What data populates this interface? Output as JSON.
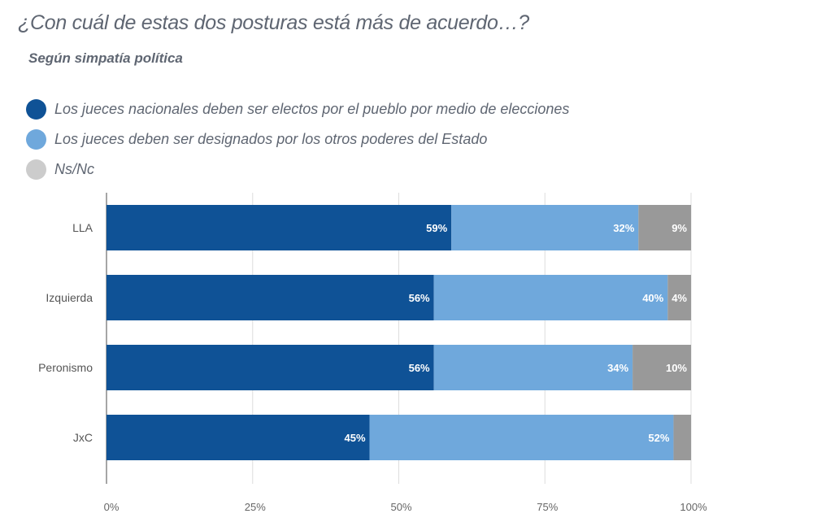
{
  "chart_data": {
    "type": "bar",
    "orientation": "horizontal",
    "stacked": "percent",
    "title": "¿Con cuál de estas dos posturas está más de acuerdo…?",
    "subtitle": "Según simpatía política",
    "categories": [
      "LLA",
      "Izquierda",
      "Peronismo",
      "JxC"
    ],
    "series": [
      {
        "name": "Los jueces nacionales deben ser electos por el pueblo por medio de elecciones",
        "color": "#0f5296",
        "values": [
          59,
          56,
          56,
          45
        ]
      },
      {
        "name": "Los jueces deben ser designados por los otros poderes del Estado",
        "color": "#6fa8dc",
        "values": [
          32,
          40,
          34,
          52
        ]
      },
      {
        "name": "Ns/Nc",
        "color": "#999999",
        "values": [
          9,
          4,
          10,
          3
        ]
      }
    ],
    "data_labels": [
      [
        "59%",
        "32%",
        "9%"
      ],
      [
        "56%",
        "40%",
        "4%"
      ],
      [
        "56%",
        "34%",
        "10%"
      ],
      [
        "45%",
        "52%",
        ""
      ]
    ],
    "xticks": [
      "0%",
      "25%",
      "50%",
      "75%",
      "100%"
    ],
    "xlim": [
      0,
      100
    ],
    "grid": true,
    "legend_position": "top-left",
    "legend_dot_colors": [
      "#0f5296",
      "#6fa8dc",
      "#cccccc"
    ]
  }
}
